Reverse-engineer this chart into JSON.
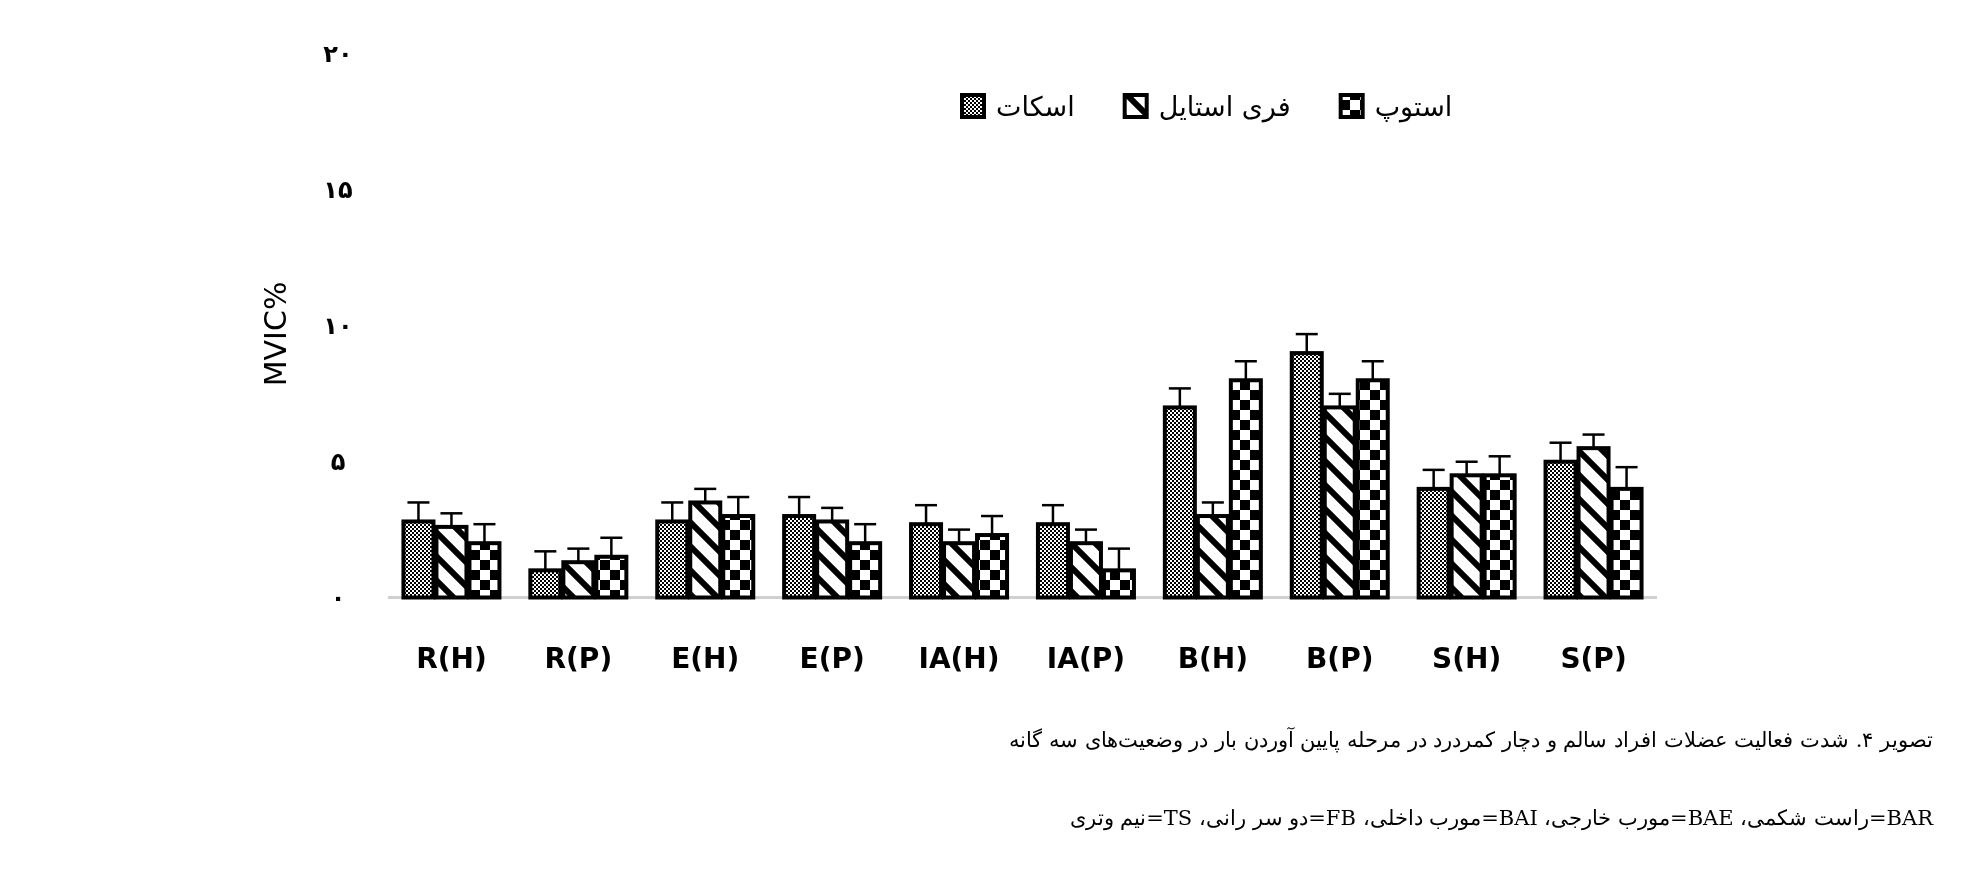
{
  "chart_data": {
    "type": "bar",
    "categories": [
      "R(H)",
      "R(P)",
      "E(H)",
      "E(P)",
      "IA(H)",
      "IA(P)",
      "B(H)",
      "B(P)",
      "S(H)",
      "S(P)"
    ],
    "series": [
      {
        "name": "اسکات",
        "color": "#000000",
        "values": [
          2.8,
          1.0,
          2.8,
          3.0,
          2.7,
          2.7,
          7.0,
          9.0,
          4.0,
          5.0
        ],
        "errors": [
          [
            2.8,
            3.5
          ],
          [
            1.0,
            1.7
          ],
          [
            2.8,
            3.5
          ],
          [
            3.0,
            3.7
          ],
          [
            2.7,
            3.4
          ],
          [
            2.7,
            3.4
          ],
          [
            7.0,
            7.7
          ],
          [
            9.0,
            9.7
          ],
          [
            4.0,
            4.7
          ],
          [
            5.0,
            5.7
          ]
        ]
      },
      {
        "name": "فری استایل",
        "color": "#000000",
        "values": [
          2.6,
          1.3,
          3.5,
          2.8,
          2.0,
          2.0,
          3.0,
          7.0,
          4.5,
          5.5
        ],
        "errors": [
          [
            2.6,
            3.1
          ],
          [
            1.3,
            1.8
          ],
          [
            3.5,
            4.0
          ],
          [
            2.8,
            3.3
          ],
          [
            2.0,
            2.5
          ],
          [
            2.0,
            2.5
          ],
          [
            3.0,
            3.5
          ],
          [
            7.0,
            7.5
          ],
          [
            4.5,
            5.0
          ],
          [
            5.5,
            6.0
          ]
        ]
      },
      {
        "name": "استوپ",
        "color": "#000000",
        "values": [
          2.0,
          1.5,
          3.0,
          2.0,
          2.3,
          1.0,
          8.0,
          8.0,
          4.5,
          4.0
        ],
        "errors": [
          [
            2.0,
            2.7
          ],
          [
            1.5,
            2.2
          ],
          [
            3.0,
            3.7
          ],
          [
            2.0,
            2.7
          ],
          [
            2.3,
            3.0
          ],
          [
            1.0,
            1.8
          ],
          [
            8.0,
            8.7
          ],
          [
            8.0,
            8.7
          ],
          [
            4.5,
            5.2
          ],
          [
            4.0,
            4.8
          ]
        ]
      }
    ],
    "ylabel": "MVIC%",
    "ylim": [
      0,
      20
    ],
    "yticks": [
      {
        "value": 0,
        "label": "۰"
      },
      {
        "value": 5,
        "label": "۵"
      },
      {
        "value": 10,
        "label": "۱۰"
      },
      {
        "value": 15,
        "label": "۱۵"
      },
      {
        "value": 20,
        "label": "۲۰"
      }
    ],
    "legend": "top",
    "annotations": [
      "تصویر ۴. شدت فعالیت عضلات افراد سالم و دچار کمردرد در مرحله پایین آوردن بار در وضعیت‌های سه گانه",
      "BAR=راست شکمی، BAE=مورب خارجی، BAI=مورب داخلی، FB=دو سر رانی، TS=نیم وتری"
    ]
  }
}
